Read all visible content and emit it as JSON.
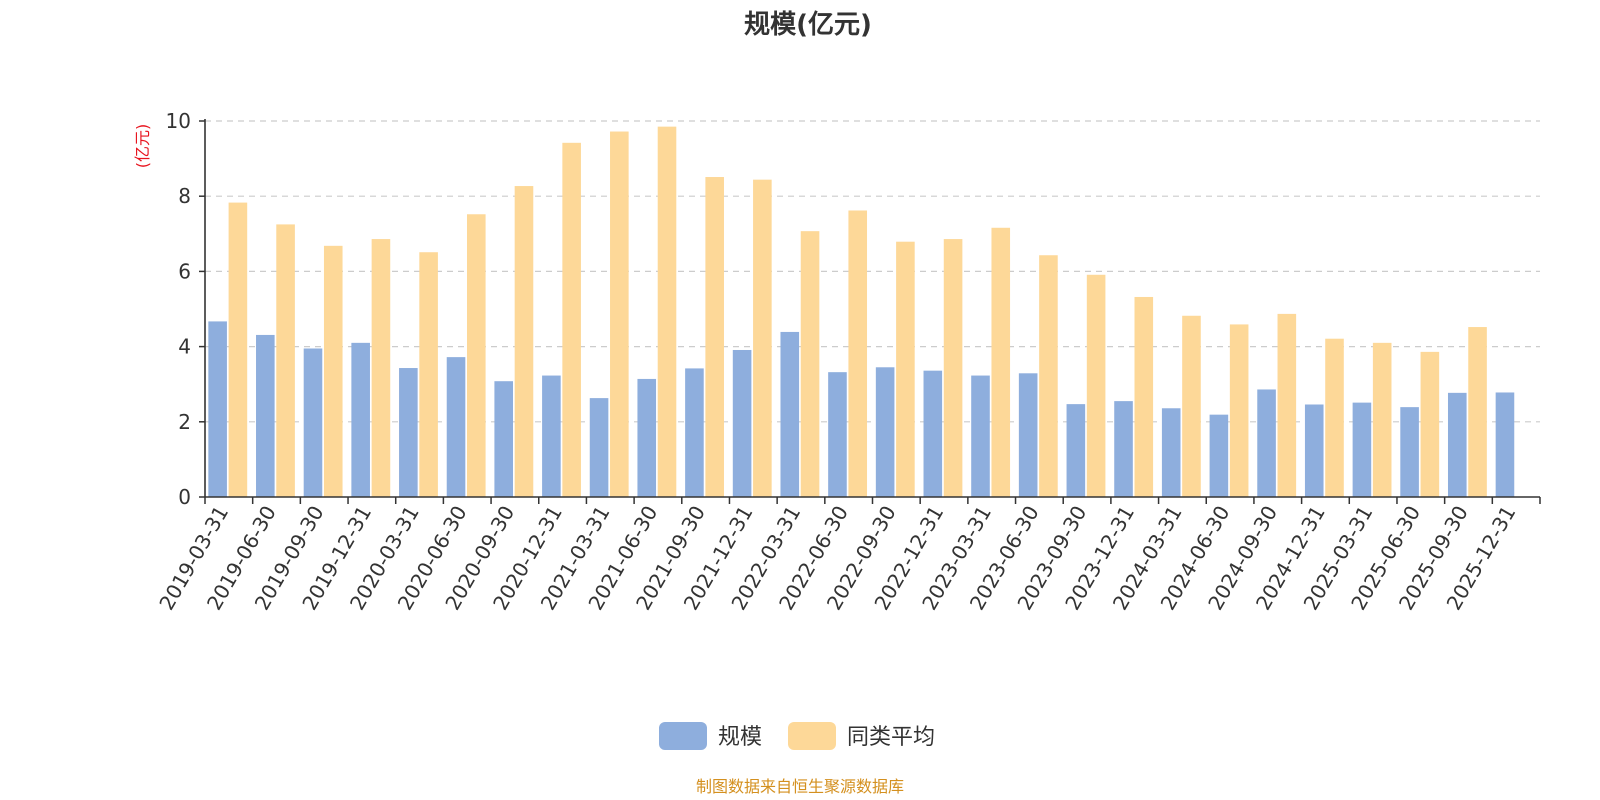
{
  "chart_data": {
    "type": "bar",
    "title": "规模(亿元)",
    "ylabel": "(亿元)",
    "ylim": [
      0,
      10
    ],
    "yticks": [
      0,
      2,
      4,
      6,
      8,
      10
    ],
    "grid": true,
    "legend_position": "bottom-center",
    "categories": [
      "2019-03-31",
      "2019-06-30",
      "2019-09-30",
      "2019-12-31",
      "2020-03-31",
      "2020-06-30",
      "2020-09-30",
      "2020-12-31",
      "2021-03-31",
      "2021-06-30",
      "2021-09-30",
      "2021-12-31",
      "2022-03-31",
      "2022-06-30",
      "2022-09-30",
      "2022-12-31",
      "2023-03-31",
      "2023-06-30",
      "2023-09-30",
      "2023-12-31",
      "2024-03-31",
      "2024-06-30",
      "2024-09-30",
      "2024-12-31",
      "2025-03-31",
      "2025-06-30",
      "2025-09-30",
      "2025-12-31"
    ],
    "series": [
      {
        "name": "规模",
        "color": "#8eaedd",
        "values": [
          4.67,
          4.31,
          3.95,
          4.1,
          3.43,
          3.72,
          3.08,
          3.23,
          2.63,
          3.14,
          3.42,
          3.91,
          4.39,
          3.32,
          3.45,
          3.36,
          3.23,
          3.29,
          2.47,
          2.55,
          2.36,
          2.19,
          2.86,
          2.46,
          2.51,
          2.39,
          2.77,
          2.78
        ]
      },
      {
        "name": "同类平均",
        "color": "#fdd898",
        "values": [
          7.83,
          7.25,
          6.68,
          6.86,
          6.51,
          7.52,
          8.27,
          9.42,
          9.72,
          9.85,
          8.51,
          8.44,
          7.07,
          7.62,
          6.79,
          6.86,
          7.16,
          6.43,
          5.91,
          5.32,
          4.82,
          4.59,
          4.87,
          4.21,
          4.1,
          3.86,
          4.52,
          null
        ]
      }
    ]
  },
  "source_note": "制图数据来自恒生聚源数据库",
  "colors": {
    "axis": "#333333",
    "grid": "#cccccc",
    "ylabel": "#e8151f",
    "source": "#d4901f"
  }
}
